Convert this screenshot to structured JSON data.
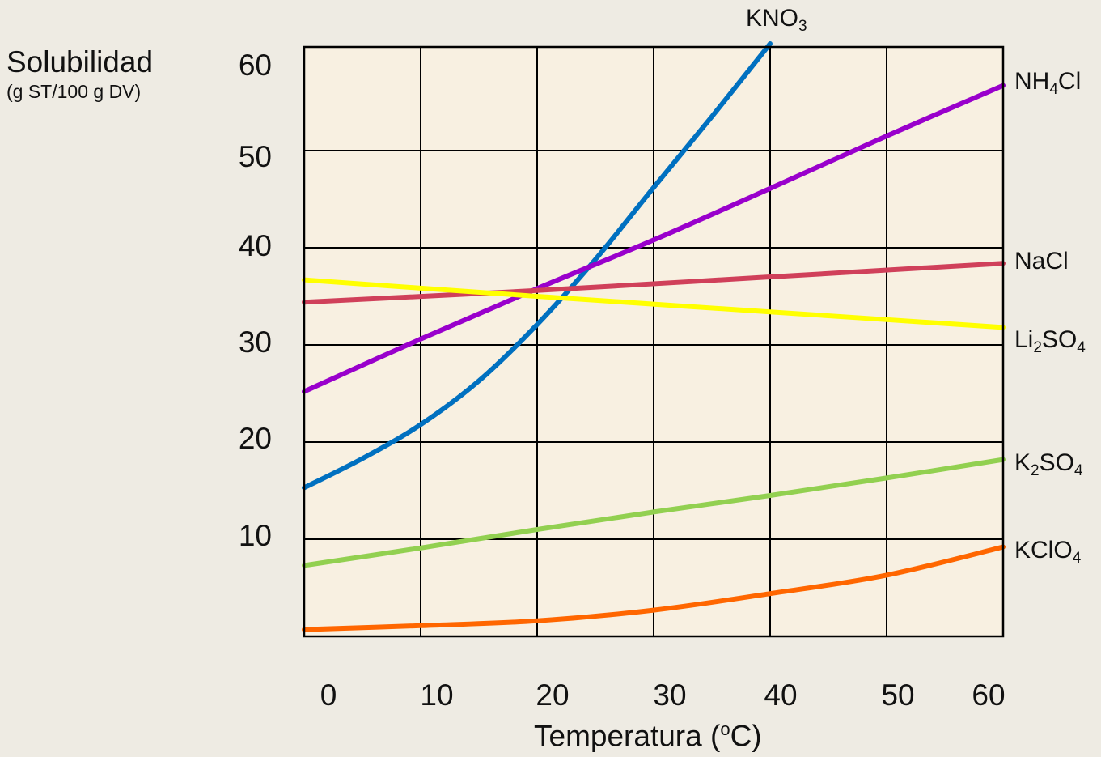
{
  "chart_data": {
    "type": "line",
    "ylabel": "Solubilidad",
    "ylabel_sub": "(g ST/100 g DV)",
    "xlabel_text": "Temperatura (",
    "xlabel_sup": "o",
    "xlabel_end": "C)",
    "xlim": [
      0,
      60
    ],
    "ylim": [
      0,
      60
    ],
    "x_ticks": [
      "0",
      "10",
      "20",
      "30",
      "40",
      "50",
      "60"
    ],
    "y_ticks": [
      "10",
      "20",
      "30",
      "40",
      "50",
      "60"
    ],
    "grid": true,
    "background_color": "#F8F0E1",
    "series": [
      {
        "name": "KNO3",
        "name_main": "KNO",
        "name_sub": "3",
        "color": "#0070C0",
        "x": [
          0,
          5,
          10,
          15,
          20,
          25,
          30,
          35,
          40
        ],
        "y": [
          15.3,
          18.3,
          21.8,
          26.3,
          32.1,
          38.8,
          46.2,
          53.5,
          61
        ]
      },
      {
        "name": "NH4Cl",
        "name_main": "NH",
        "name_sub": "4",
        "name_end": "Cl",
        "color": "#9900CC",
        "x": [
          0,
          10,
          20,
          30,
          40,
          50,
          60
        ],
        "y": [
          25.2,
          30.6,
          35.8,
          40.8,
          46.1,
          51.5,
          56.7
        ]
      },
      {
        "name": "NaCl",
        "name_main": "NaCl",
        "color": "#D0405A",
        "x": [
          0,
          20,
          40,
          60
        ],
        "y": [
          34.4,
          35.6,
          37.0,
          38.4
        ]
      },
      {
        "name": "Li2SO4",
        "name_main": "Li",
        "name_sub": "2",
        "name_end": "SO",
        "name_sub2": "4",
        "color": "#FFFF00",
        "x": [
          0,
          20,
          40,
          60
        ],
        "y": [
          36.7,
          35.0,
          33.4,
          31.8
        ]
      },
      {
        "name": "K2SO4",
        "name_main": "K",
        "name_sub": "2",
        "name_end": "SO",
        "name_sub2": "4",
        "color": "#92D050",
        "x": [
          0,
          10,
          20,
          30,
          40,
          50,
          60
        ],
        "y": [
          7.3,
          9.1,
          11.0,
          12.8,
          14.5,
          16.3,
          18.2
        ]
      },
      {
        "name": "KClO4",
        "name_main": "KClO",
        "name_sub": "4",
        "color": "#FF6600",
        "x": [
          0,
          10,
          20,
          30,
          40,
          50,
          60
        ],
        "y": [
          0.7,
          1.1,
          1.6,
          2.7,
          4.4,
          6.3,
          9.2
        ]
      }
    ]
  }
}
